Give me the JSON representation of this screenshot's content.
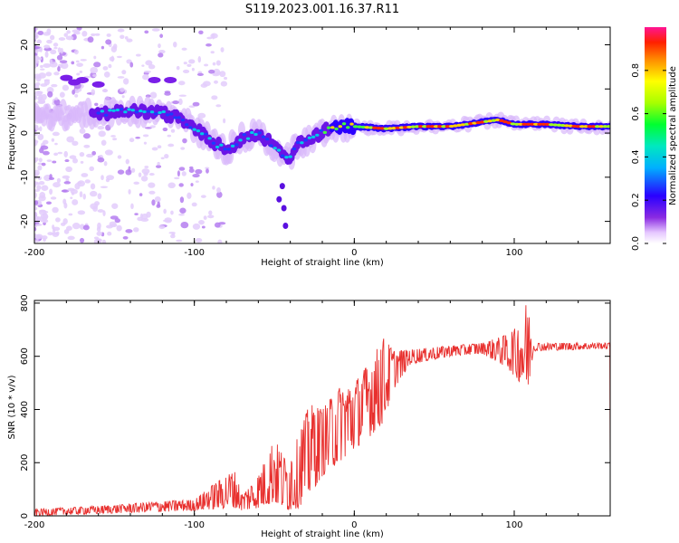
{
  "title": "S119.2023.001.16.37.R11",
  "chart_data": [
    {
      "type": "heatmap",
      "xlabel": "Height of straight line (km)",
      "ylabel": "Frequency (Hz)",
      "xlim": [
        -200,
        160
      ],
      "ylim": [
        -25,
        24
      ],
      "x_ticks": [
        -200,
        -100,
        0,
        100
      ],
      "y_ticks": [
        -20,
        -10,
        0,
        10,
        20
      ],
      "colorbar": {
        "label": "Normalized spectral amplitude",
        "range": [
          0,
          1
        ],
        "ticks": [
          0.0,
          0.2,
          0.4,
          0.6,
          0.8
        ],
        "colormap": "rainbow-purple-to-red"
      },
      "ridge": [
        {
          "x": -200,
          "y": 4
        },
        {
          "x": -180,
          "y": 4
        },
        {
          "x": -160,
          "y": 4.5
        },
        {
          "x": -140,
          "y": 5
        },
        {
          "x": -120,
          "y": 4.5
        },
        {
          "x": -110,
          "y": 3.5
        },
        {
          "x": -100,
          "y": 1
        },
        {
          "x": -90,
          "y": -1.5
        },
        {
          "x": -80,
          "y": -4
        },
        {
          "x": -70,
          "y": -1
        },
        {
          "x": -60,
          "y": 0
        },
        {
          "x": -50,
          "y": -3
        },
        {
          "x": -42,
          "y": -6
        },
        {
          "x": -35,
          "y": -2.5
        },
        {
          "x": -25,
          "y": -1
        },
        {
          "x": -15,
          "y": 1.5
        },
        {
          "x": 0,
          "y": 1.5
        },
        {
          "x": 20,
          "y": 1
        },
        {
          "x": 40,
          "y": 1.5
        },
        {
          "x": 60,
          "y": 1.5
        },
        {
          "x": 80,
          "y": 2.5
        },
        {
          "x": 90,
          "y": 3
        },
        {
          "x": 100,
          "y": 2
        },
        {
          "x": 120,
          "y": 2
        },
        {
          "x": 140,
          "y": 1.5
        },
        {
          "x": 160,
          "y": 1.5
        }
      ]
    },
    {
      "type": "line",
      "xlabel": "Height of straight line (km)",
      "ylabel": "SNR (10 * v/v)",
      "xlim": [
        -200,
        160
      ],
      "ylim": [
        0,
        810
      ],
      "x_ticks": [
        -200,
        -100,
        0,
        100
      ],
      "y_ticks": [
        0,
        200,
        400,
        600,
        800
      ],
      "color": "#e8302e",
      "envelope": [
        {
          "x": -200,
          "lo": 0,
          "hi": 25
        },
        {
          "x": -150,
          "lo": 10,
          "hi": 40
        },
        {
          "x": -120,
          "lo": 15,
          "hi": 55
        },
        {
          "x": -100,
          "lo": 20,
          "hi": 60
        },
        {
          "x": -90,
          "lo": 25,
          "hi": 110
        },
        {
          "x": -75,
          "lo": 30,
          "hi": 170
        },
        {
          "x": -70,
          "lo": 20,
          "hi": 80
        },
        {
          "x": -60,
          "lo": 30,
          "hi": 150
        },
        {
          "x": -50,
          "lo": 50,
          "hi": 290
        },
        {
          "x": -42,
          "lo": 20,
          "hi": 200
        },
        {
          "x": -35,
          "lo": 30,
          "hi": 300
        },
        {
          "x": -28,
          "lo": 80,
          "hi": 420
        },
        {
          "x": -20,
          "lo": 150,
          "hi": 400
        },
        {
          "x": -10,
          "lo": 200,
          "hi": 480
        },
        {
          "x": 0,
          "lo": 250,
          "hi": 500
        },
        {
          "x": 10,
          "lo": 300,
          "hi": 580
        },
        {
          "x": 18,
          "lo": 350,
          "hi": 670
        },
        {
          "x": 25,
          "lo": 480,
          "hi": 620
        },
        {
          "x": 35,
          "lo": 570,
          "hi": 625
        },
        {
          "x": 60,
          "lo": 600,
          "hi": 640
        },
        {
          "x": 80,
          "lo": 610,
          "hi": 650
        },
        {
          "x": 95,
          "lo": 560,
          "hi": 680
        },
        {
          "x": 104,
          "lo": 500,
          "hi": 720
        },
        {
          "x": 108,
          "lo": 440,
          "hi": 810
        },
        {
          "x": 112,
          "lo": 620,
          "hi": 650
        },
        {
          "x": 140,
          "lo": 625,
          "hi": 650
        },
        {
          "x": 160,
          "lo": 630,
          "hi": 650
        }
      ]
    }
  ]
}
